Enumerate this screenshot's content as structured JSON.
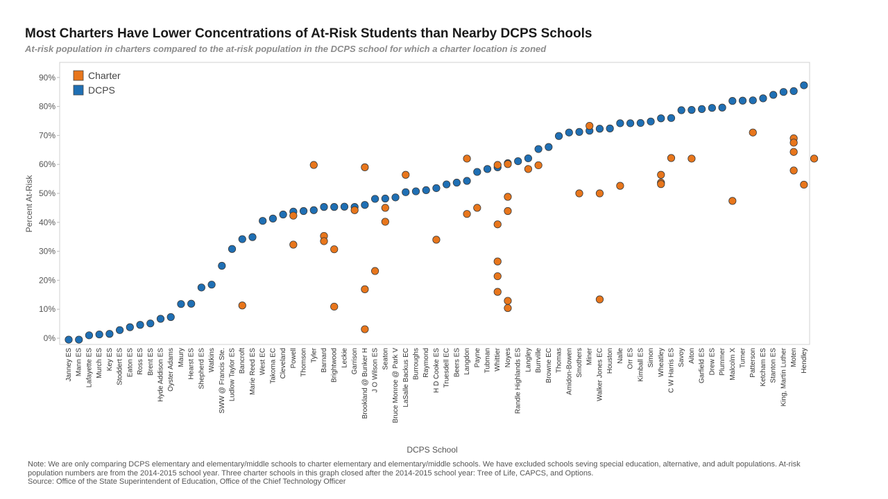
{
  "chart_data": {
    "type": "scatter",
    "title": "Most Charters Have Lower Concentrations of At-Risk Students than Nearby DCPS Schools",
    "subtitle": "At-risk population in charters compared to the at-risk population in the DCPS school for which a charter location is zoned",
    "xlabel": "DCPS School",
    "ylabel": "Percent At-Risk",
    "ylim": [
      -1,
      92
    ],
    "yticks": [
      "0%",
      "10%",
      "20%",
      "30%",
      "40%",
      "50%",
      "60%",
      "70%",
      "80%",
      "90%"
    ],
    "ytick_values": [
      0,
      10,
      20,
      30,
      40,
      50,
      60,
      70,
      80,
      90
    ],
    "grid": false,
    "legend_position": "top-left",
    "categories": [
      "Janney ES",
      "Mann ES",
      "Lafayette ES",
      "Murch ES",
      "Key ES",
      "Stoddert ES",
      "Eaton ES",
      "Ross ES",
      "Brent ES",
      "Hyde Addison ES",
      "Oyster Adams",
      "Maury",
      "Hearst ES",
      "Shepherd ES",
      "Watkins",
      "SWW @ Francis Ste.",
      "Ludlow Taylor ES",
      "Bancroft",
      "Marie Reed ES",
      "West EC",
      "Takoma EC",
      "Cleveland",
      "Powell",
      "Thomson",
      "Tyler",
      "Barnard",
      "Brightwood",
      "Leckie",
      "Garrison",
      "Brookland @ Bunker H",
      "J O Wilson ES",
      "Seaton",
      "Bruce Monroe @ Park V",
      "LaSalle Backus EC",
      "Burroughs",
      "Raymond",
      "H D Cooke ES",
      "Truesdell EC",
      "Beers ES",
      "Langdon",
      "Payne",
      "Tubman",
      "Whittier",
      "Noyes",
      "Randle Highlands ES",
      "Langley",
      "Burrville",
      "Browne EC",
      "Thomas",
      "Amidon-Bowen",
      "Smothers",
      "Miner",
      "Walker Jones EC",
      "Houston",
      "Nalle",
      "Orr ES",
      "Kimball ES",
      "Simon",
      "Wheatley",
      "C W Harris ES",
      "Savoy",
      "Aiton",
      "Garfield ES",
      "Drew ES",
      "Plummer",
      "Malcolm X",
      "Turner",
      "Patterson",
      "Ketcham ES",
      "Stanton ES",
      "King, Martin Luther",
      "Moten",
      "Hendley"
    ],
    "series": [
      {
        "name": "DCPS",
        "color": "#1f6fb4",
        "points": [
          [
            0,
            -0.5
          ],
          [
            1,
            -0.5
          ],
          [
            2,
            1
          ],
          [
            3,
            1.3
          ],
          [
            4,
            1.5
          ],
          [
            5,
            2.8
          ],
          [
            6,
            3.8
          ],
          [
            7,
            4.6
          ],
          [
            8,
            5.1
          ],
          [
            9,
            6.7
          ],
          [
            10,
            7.3
          ],
          [
            11,
            11.8
          ],
          [
            12,
            11.9
          ],
          [
            13,
            17.5
          ],
          [
            14,
            18.5
          ],
          [
            15,
            25
          ],
          [
            16,
            30.8
          ],
          [
            17,
            34.2
          ],
          [
            18,
            34.9
          ],
          [
            19,
            40.5
          ],
          [
            20,
            41.3
          ],
          [
            21,
            42.7
          ],
          [
            22,
            43.7
          ],
          [
            23,
            43.9
          ],
          [
            24,
            44.2
          ],
          [
            25,
            45.3
          ],
          [
            26,
            45.3
          ],
          [
            27,
            45.4
          ],
          [
            28,
            45.3
          ],
          [
            29,
            46
          ],
          [
            30,
            48.1
          ],
          [
            31,
            48.2
          ],
          [
            32,
            48.6
          ],
          [
            33,
            50.4
          ],
          [
            34,
            50.7
          ],
          [
            35,
            51.1
          ],
          [
            36,
            51.8
          ],
          [
            37,
            53.1
          ],
          [
            38,
            53.7
          ],
          [
            39,
            54.3
          ],
          [
            40,
            57.4
          ],
          [
            41,
            58.4
          ],
          [
            42,
            59
          ],
          [
            43,
            60.4
          ],
          [
            44,
            61.1
          ],
          [
            45,
            62.1
          ],
          [
            46,
            65.3
          ],
          [
            47,
            66
          ],
          [
            48,
            69.8
          ],
          [
            49,
            71
          ],
          [
            50,
            71.2
          ],
          [
            51,
            71.6
          ],
          [
            52,
            72.3
          ],
          [
            53,
            72.4
          ],
          [
            54,
            74.2
          ],
          [
            55,
            74.2
          ],
          [
            56,
            74.3
          ],
          [
            57,
            74.8
          ],
          [
            58,
            75.9
          ],
          [
            59,
            76
          ],
          [
            60,
            78.7
          ],
          [
            61,
            78.8
          ],
          [
            62,
            79.1
          ],
          [
            63,
            79.5
          ],
          [
            64,
            79.6
          ],
          [
            65,
            81.9
          ],
          [
            66,
            82
          ],
          [
            67,
            82.1
          ],
          [
            68,
            82.8
          ],
          [
            69,
            84
          ],
          [
            70,
            85
          ],
          [
            71,
            85.3
          ],
          [
            72,
            87.3
          ]
        ]
      },
      {
        "name": "Charter",
        "color": "#e8761c",
        "points": [
          [
            17,
            11.3
          ],
          [
            22,
            42.3
          ],
          [
            22,
            32.3
          ],
          [
            24,
            59.8
          ],
          [
            25,
            35.3
          ],
          [
            25,
            33.5
          ],
          [
            26,
            30.7
          ],
          [
            26,
            10.9
          ],
          [
            28,
            44.2
          ],
          [
            29,
            59
          ],
          [
            29,
            16.9
          ],
          [
            29,
            3.1
          ],
          [
            30,
            23.2
          ],
          [
            31,
            45
          ],
          [
            31,
            40.2
          ],
          [
            33,
            56.4
          ],
          [
            36,
            34
          ],
          [
            39,
            62
          ],
          [
            39,
            42.9
          ],
          [
            40,
            45
          ],
          [
            42,
            59.8
          ],
          [
            42,
            39.3
          ],
          [
            42,
            26.5
          ],
          [
            42,
            21.4
          ],
          [
            42,
            16
          ],
          [
            43,
            60.1
          ],
          [
            43,
            48.8
          ],
          [
            43,
            43.9
          ],
          [
            43,
            12.9
          ],
          [
            43,
            10.4
          ],
          [
            45,
            58.4
          ],
          [
            46,
            59.7
          ],
          [
            51,
            73.3
          ],
          [
            50,
            50
          ],
          [
            52,
            50
          ],
          [
            52,
            13.4
          ],
          [
            54,
            52.6
          ],
          [
            58,
            56.4
          ],
          [
            58,
            53.7
          ],
          [
            58,
            53.2
          ],
          [
            59,
            62.2
          ],
          [
            61,
            62
          ],
          [
            65,
            47.4
          ],
          [
            67,
            71
          ],
          [
            71,
            69
          ],
          [
            71,
            67.5
          ],
          [
            71,
            64.3
          ],
          [
            71,
            57.9
          ],
          [
            72,
            53
          ],
          [
            73,
            62
          ]
        ]
      }
    ]
  },
  "note": {
    "text": "Note: We are only comparing DCPS elementary and elementary/middle schools to charter elementary and elementary/middle schools. We have excluded schools seving special education, alternative, and adult populations. At-risk population numbers are from the 2014-2015 school year. Three charter schools in this graph closed after the 2014-2015 school year: Tree of Life, CAPCS, and Options.",
    "source": "Source: Office of the State Superintendent of Education, Office of the Chief Technology Officer"
  }
}
